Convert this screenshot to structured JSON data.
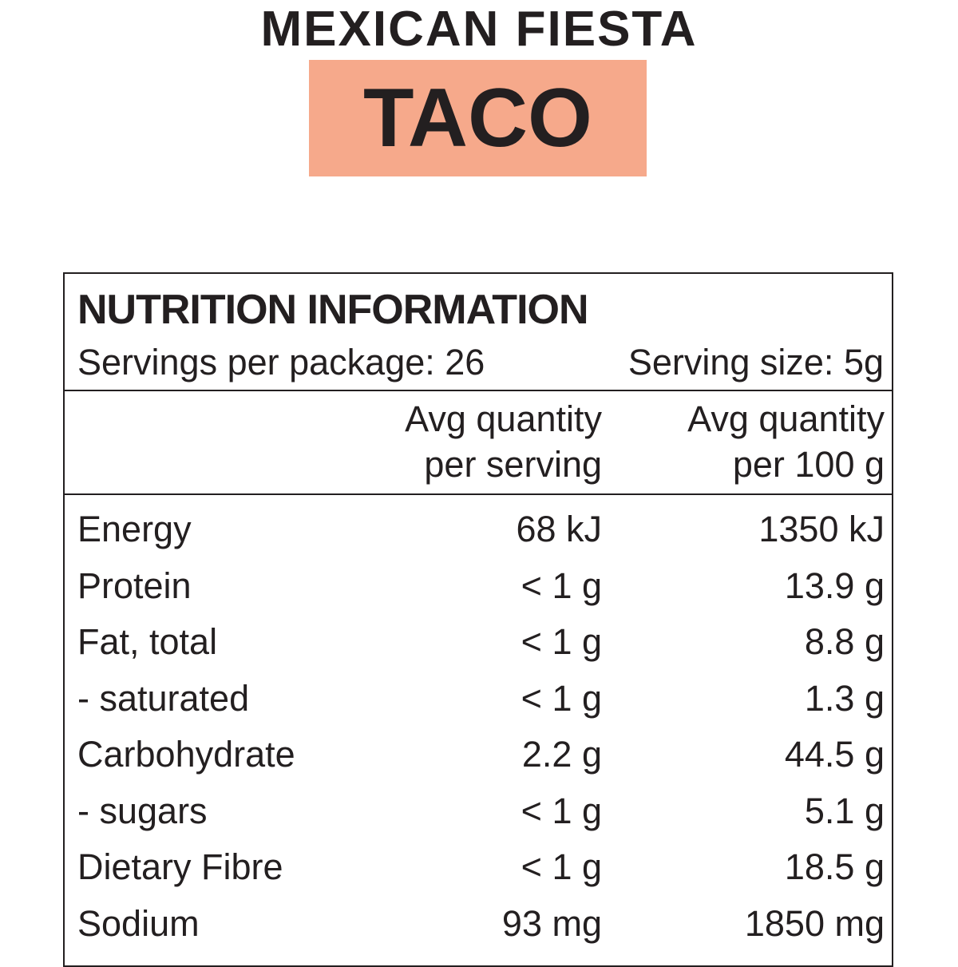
{
  "header": {
    "title": "MEXICAN FIESTA",
    "subtitle": "TACO"
  },
  "nutrition": {
    "title": "NUTRITION INFORMATION",
    "servings_per_package": "Servings per package: 26",
    "serving_size": "Serving size: 5g",
    "columns": [
      [
        "Avg quantity",
        "per serving"
      ],
      [
        "Avg quantity",
        "per 100 g"
      ]
    ],
    "rows": [
      [
        "Energy",
        "68 kJ",
        "1350 kJ"
      ],
      [
        "Protein",
        "< 1 g",
        "13.9 g"
      ],
      [
        "Fat, total",
        "< 1 g",
        "8.8 g"
      ],
      [
        "- saturated",
        "< 1 g",
        "1.3 g"
      ],
      [
        "Carbohydrate",
        "2.2 g",
        "44.5 g"
      ],
      [
        "- sugars",
        "< 1 g",
        "5.1 g"
      ],
      [
        "Dietary Fibre",
        "< 1 g",
        "18.5 g"
      ],
      [
        "Sodium",
        "93 mg",
        "1850 mg"
      ]
    ]
  }
}
